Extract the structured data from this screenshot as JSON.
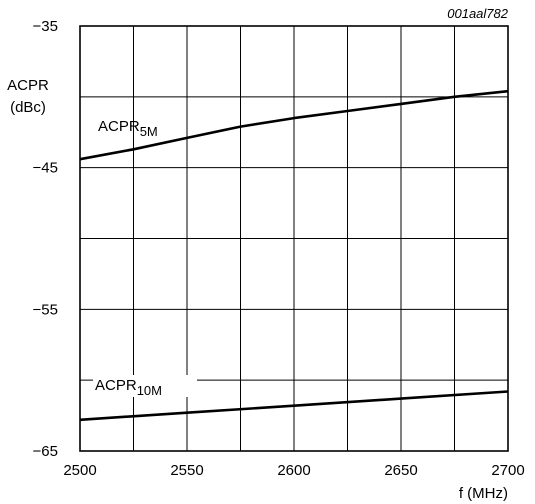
{
  "chart_data": {
    "type": "line",
    "figure_id": "001aal782",
    "xlabel": "f (MHz)",
    "ylabel_line1": "ACPR",
    "ylabel_line2": "(dBc)",
    "xlim": [
      2500,
      2700
    ],
    "ylim": [
      -65,
      -35
    ],
    "x_ticks": [
      2500,
      2550,
      2600,
      2650,
      2700
    ],
    "x_tick_labels": [
      "2500",
      "2550",
      "2600",
      "2650",
      "2700"
    ],
    "y_ticks": [
      -35,
      -45,
      -55,
      -65
    ],
    "y_tick_labels": [
      "−35",
      "−45",
      "−55",
      "−65"
    ],
    "x_grid": [
      2525,
      2550,
      2575,
      2600,
      2625,
      2650,
      2675
    ],
    "y_grid": [
      -40,
      -45,
      -50,
      -55,
      -60
    ],
    "series": [
      {
        "name": "ACPR5M",
        "label_main": "ACPR",
        "label_sub": "5M",
        "x": [
          2500,
          2525,
          2550,
          2575,
          2600,
          2625,
          2650,
          2675,
          2700
        ],
        "y": [
          -44.4,
          -43.7,
          -42.9,
          -42.1,
          -41.5,
          -41.0,
          -40.5,
          -40.0,
          -39.6
        ]
      },
      {
        "name": "ACPR10M",
        "label_main": "ACPR",
        "label_sub": "10M",
        "x": [
          2500,
          2550,
          2600,
          2650,
          2700
        ],
        "y": [
          -62.8,
          -62.3,
          -61.8,
          -61.3,
          -60.8
        ]
      }
    ]
  }
}
